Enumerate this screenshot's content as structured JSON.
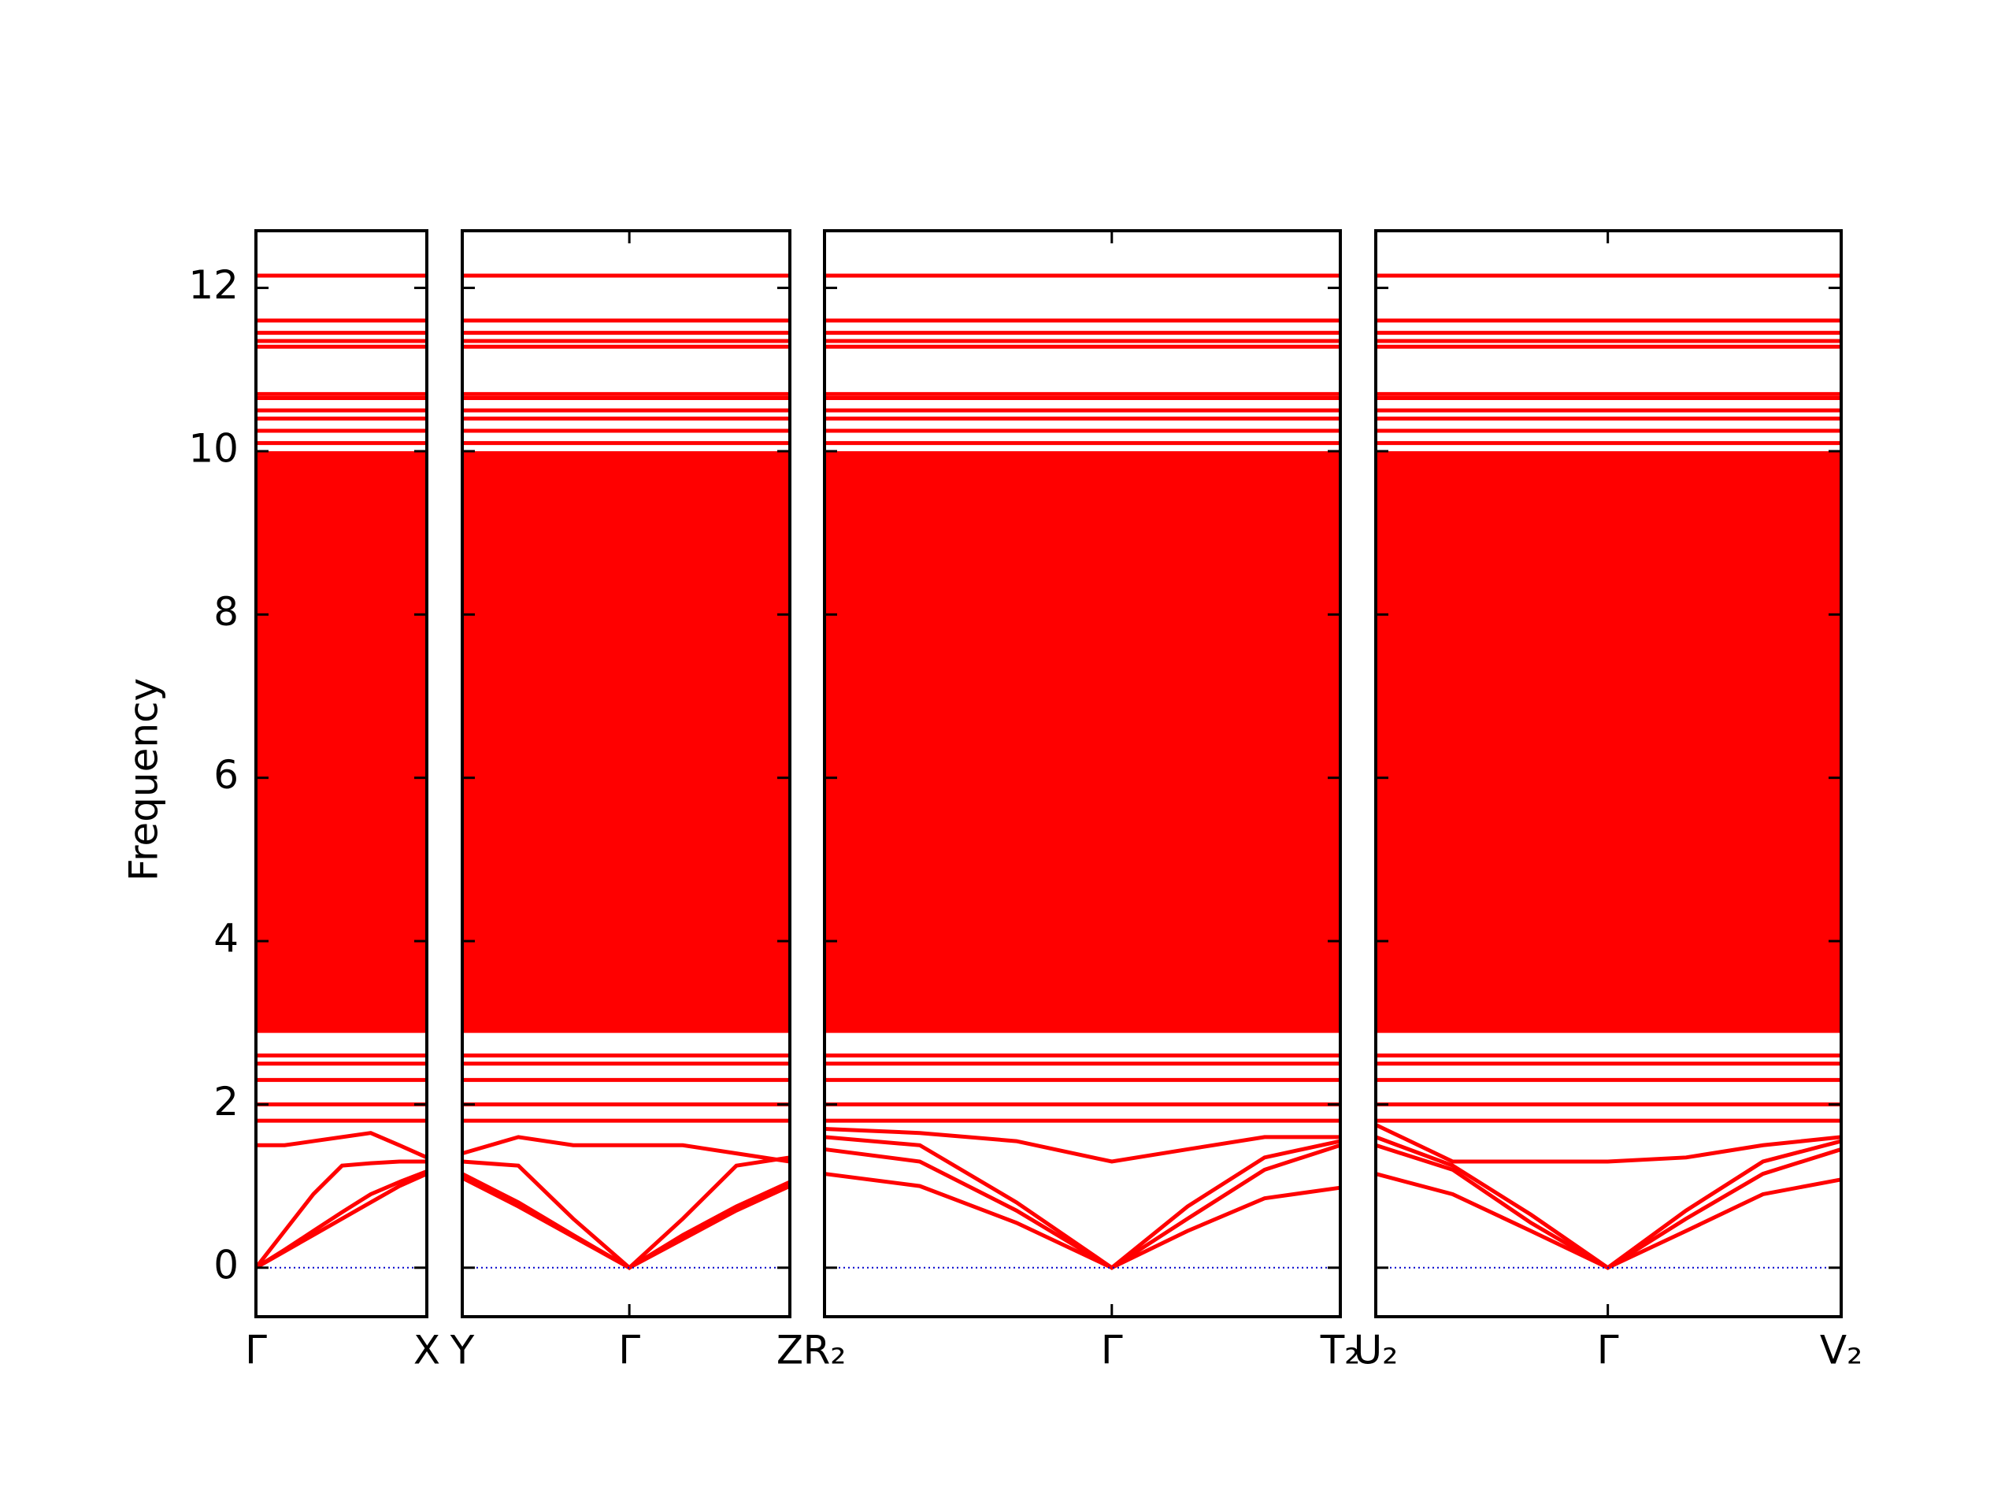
{
  "chart_data": {
    "type": "line",
    "ylabel": "Frequency",
    "ylim": [
      -0.6,
      12.7
    ],
    "yticks": [
      0,
      2,
      4,
      6,
      8,
      10,
      12
    ],
    "line_color": "#ff0000",
    "zero_line": {
      "value": 0,
      "color": "#0000cc"
    },
    "fill_range": [
      2.9,
      10.0
    ],
    "flat_bands": [
      1.8,
      2.0,
      2.3,
      2.5,
      2.6,
      2.9,
      10.1,
      10.25,
      10.4,
      10.5,
      10.65,
      10.7,
      11.28,
      11.35,
      11.45,
      11.6,
      12.15
    ],
    "panels": [
      {
        "xlim": [
          0,
          1.31
        ],
        "xticks": [
          {
            "value": 0,
            "label": "Γ"
          },
          {
            "value": 1.31,
            "label": "X"
          }
        ],
        "x": [
          0,
          0.22,
          0.44,
          0.66,
          0.88,
          1.1,
          1.31
        ],
        "series": [
          {
            "values": [
              0,
              0.2,
              0.4,
              0.6,
              0.8,
              1.0,
              1.15
            ]
          },
          {
            "values": [
              0,
              0.22,
              0.45,
              0.68,
              0.9,
              1.05,
              1.18
            ]
          },
          {
            "values": [
              0,
              0.45,
              0.9,
              1.25,
              1.28,
              1.3,
              1.3
            ]
          },
          {
            "values": [
              1.5,
              1.5,
              1.55,
              1.6,
              1.65,
              1.5,
              1.35
            ]
          }
        ]
      },
      {
        "xlim": [
          0,
          2.51
        ],
        "xticks": [
          {
            "value": 0,
            "label": "Y"
          },
          {
            "value": 1.28,
            "label": "Γ"
          },
          {
            "value": 2.51,
            "label": "Z"
          }
        ],
        "x": [
          0,
          0.43,
          0.85,
          1.28,
          1.69,
          2.1,
          2.51
        ],
        "series": [
          {
            "values": [
              1.1,
              0.75,
              0.38,
              0,
              0.35,
              0.7,
              1.0
            ]
          },
          {
            "values": [
              1.15,
              0.8,
              0.4,
              0,
              0.4,
              0.75,
              1.05
            ]
          },
          {
            "values": [
              1.3,
              1.25,
              0.6,
              0,
              0.6,
              1.25,
              1.35
            ]
          },
          {
            "values": [
              1.4,
              1.6,
              1.5,
              1.5,
              1.5,
              1.4,
              1.3
            ]
          }
        ]
      },
      {
        "xlim": [
          0,
          3.95
        ],
        "xticks": [
          {
            "value": 0,
            "label": "R₂"
          },
          {
            "value": 2.2,
            "label": "Γ"
          },
          {
            "value": 3.95,
            "label": "T₂"
          }
        ],
        "x": [
          0,
          0.73,
          1.47,
          2.2,
          2.78,
          3.37,
          3.95
        ],
        "series": [
          {
            "values": [
              1.15,
              1.0,
              0.55,
              0,
              0.45,
              0.85,
              0.98
            ]
          },
          {
            "values": [
              1.45,
              1.3,
              0.7,
              0,
              0.6,
              1.2,
              1.5
            ]
          },
          {
            "values": [
              1.6,
              1.5,
              0.8,
              0,
              0.75,
              1.35,
              1.55
            ]
          },
          {
            "values": [
              1.7,
              1.65,
              1.55,
              1.3,
              1.45,
              1.6,
              1.6
            ]
          }
        ]
      },
      {
        "xlim": [
          0,
          3.57
        ],
        "xticks": [
          {
            "value": 0,
            "label": "U₂"
          },
          {
            "value": 1.78,
            "label": "Γ"
          },
          {
            "value": 3.57,
            "label": "V₂"
          }
        ],
        "x": [
          0,
          0.59,
          1.19,
          1.78,
          2.38,
          2.97,
          3.57
        ],
        "series": [
          {
            "values": [
              1.15,
              0.9,
              0.45,
              0,
              0.45,
              0.9,
              1.08
            ]
          },
          {
            "values": [
              1.5,
              1.2,
              0.55,
              0,
              0.6,
              1.15,
              1.45
            ]
          },
          {
            "values": [
              1.6,
              1.25,
              0.65,
              0,
              0.7,
              1.3,
              1.55
            ]
          },
          {
            "values": [
              1.75,
              1.3,
              1.3,
              1.3,
              1.35,
              1.5,
              1.6
            ]
          }
        ]
      }
    ]
  }
}
